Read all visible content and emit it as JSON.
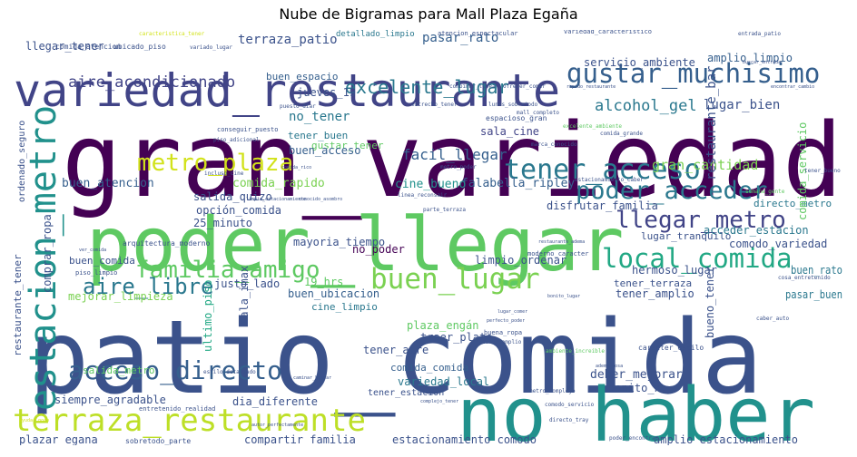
{
  "chart_data": {
    "type": "wordcloud",
    "title": "Nube de Bigramas para Mall Plaza Egaña",
    "colormap": "viridis",
    "background": "#ffffff",
    "words": [
      {
        "text": "gran_variedad",
        "weight": 1.0,
        "color": "#440154"
      },
      {
        "text": "patio_comida",
        "weight": 0.98,
        "color": "#3b528b"
      },
      {
        "text": "poder_llegar",
        "weight": 0.83,
        "color": "#5ec962"
      },
      {
        "text": "no_haber",
        "weight": 0.8,
        "color": "#21918c"
      },
      {
        "text": "variedad_restaurante",
        "weight": 0.6,
        "color": "#414487"
      },
      {
        "text": "estacion_metro",
        "weight": 0.44,
        "color": "#21918c"
      },
      {
        "text": "terraza_restaurante",
        "weight": 0.34,
        "color": "#bddf26"
      },
      {
        "text": "buen_lugar",
        "weight": 0.33,
        "color": "#7ad151"
      },
      {
        "text": "gustar_muchisimo",
        "weight": 0.32,
        "color": "#355f8d"
      },
      {
        "text": "local_comida",
        "weight": 0.32,
        "color": "#22a884"
      },
      {
        "text": "tener_acceso",
        "weight": 0.3,
        "color": "#2a788e"
      },
      {
        "text": "acceso_directo",
        "weight": 0.29,
        "color": "#355f8d"
      },
      {
        "text": "poder_acceder",
        "weight": 0.28,
        "color": "#2a788e"
      },
      {
        "text": "familia_amigo",
        "weight": 0.27,
        "color": "#5ec962"
      },
      {
        "text": "llegar_metro",
        "weight": 0.26,
        "color": "#414487"
      },
      {
        "text": "metro_plaza",
        "weight": 0.25,
        "color": "#d2e21b"
      },
      {
        "text": "aire_libre",
        "weight": 0.24,
        "color": "#2a788e"
      },
      {
        "text": "excelente_lugar",
        "weight": 0.19,
        "color": "#2a788e"
      },
      {
        "text": "aire_acondicionado",
        "weight": 0.16,
        "color": "#414487"
      },
      {
        "text": "alcohol_gel",
        "weight": 0.15,
        "color": "#2a788e"
      },
      {
        "text": "facil_llegar",
        "weight": 0.14,
        "color": "#355f8d"
      },
      {
        "text": "terraza_patio",
        "weight": 0.13,
        "color": "#3b528b"
      },
      {
        "text": "gran_cantidad",
        "weight": 0.12,
        "color": "#7ad151"
      },
      {
        "text": "restaurante_bar",
        "weight": 0.11,
        "color": "#3b528b"
      },
      {
        "text": "lugar_bien",
        "weight": 0.11,
        "color": "#3b528b"
      },
      {
        "text": "pasar_rato",
        "weight": 0.11,
        "color": "#355f8d"
      },
      {
        "text": "no_tener",
        "weight": 0.11,
        "color": "#2a788e"
      },
      {
        "text": "buen_atencion",
        "weight": 0.1,
        "color": "#355f8d"
      },
      {
        "text": "comida_rapido",
        "weight": 0.1,
        "color": "#7ad151"
      },
      {
        "text": "falabella_ripley",
        "weight": 0.1,
        "color": "#355f8d"
      },
      {
        "text": "cine_bueno",
        "weight": 0.1,
        "color": "#21918c"
      },
      {
        "text": "gustar_tener",
        "weight": 0.09,
        "color": "#5ec962"
      },
      {
        "text": "comprar_ropa",
        "weight": 0.09,
        "color": "#3b528b"
      },
      {
        "text": "disfrutar_familia",
        "weight": 0.09,
        "color": "#3b528b"
      },
      {
        "text": "directo_metro",
        "weight": 0.09,
        "color": "#2a788e"
      },
      {
        "text": "acceder_estacion",
        "weight": 0.09,
        "color": "#2a788e"
      },
      {
        "text": "amplio_limpio",
        "weight": 0.09,
        "color": "#355f8d"
      },
      {
        "text": "servicio_ambiente",
        "weight": 0.09,
        "color": "#3b528b"
      },
      {
        "text": "jueves_19",
        "weight": 0.09,
        "color": "#3b528b"
      },
      {
        "text": "buen_espacio",
        "weight": 0.09,
        "color": "#355f8d"
      },
      {
        "text": "sala_cine",
        "weight": 0.09,
        "color": "#414487"
      },
      {
        "text": "tener_buen",
        "weight": 0.08,
        "color": "#2a788e"
      },
      {
        "text": "buen_acceso",
        "weight": 0.08,
        "color": "#355f8d"
      },
      {
        "text": "salida_quizo",
        "weight": 0.08,
        "color": "#3b528b"
      },
      {
        "text": "opción_comida",
        "weight": 0.08,
        "color": "#3b528b"
      },
      {
        "text": "25_minuto",
        "weight": 0.08,
        "color": "#3b528b"
      },
      {
        "text": "mayoria_tiempo",
        "weight": 0.08,
        "color": "#3b528b"
      },
      {
        "text": "no_poder",
        "weight": 0.08,
        "color": "#440154"
      },
      {
        "text": "limpio_ordenar",
        "weight": 0.08,
        "color": "#3b528b"
      },
      {
        "text": "lugar_tranquilo",
        "weight": 0.08,
        "color": "#3b528b"
      },
      {
        "text": "comodo_variedad",
        "weight": 0.08,
        "color": "#3b528b"
      },
      {
        "text": "buen_rato",
        "weight": 0.08,
        "color": "#2a788e"
      },
      {
        "text": "hermoso_lugar",
        "weight": 0.08,
        "color": "#3b528b"
      },
      {
        "text": "tener_terraza",
        "weight": 0.08,
        "color": "#3b528b"
      },
      {
        "text": "tener_amplio",
        "weight": 0.08,
        "color": "#3b528b"
      },
      {
        "text": "bueno_tener",
        "weight": 0.08,
        "color": "#3b528b"
      },
      {
        "text": "buen_comida",
        "weight": 0.08,
        "color": "#3b528b"
      },
      {
        "text": "justo_lado",
        "weight": 0.08,
        "color": "#3b528b"
      },
      {
        "text": "mejorar_limpieza",
        "weight": 0.08,
        "color": "#7ad151"
      },
      {
        "text": "buen_ubicacion",
        "weight": 0.08,
        "color": "#355f8d"
      },
      {
        "text": "19_hrs",
        "weight": 0.08,
        "color": "#5ec962"
      },
      {
        "text": "cine_limpio",
        "weight": 0.08,
        "color": "#2a788e"
      },
      {
        "text": "sala_imax",
        "weight": 0.08,
        "color": "#3b528b"
      },
      {
        "text": "ultimo_piso",
        "weight": 0.08,
        "color": "#22a884"
      },
      {
        "text": "plaza_engán",
        "weight": 0.08,
        "color": "#5ec962"
      },
      {
        "text": "traer_plato",
        "weight": 0.08,
        "color": "#3b528b"
      },
      {
        "text": "tener_aire",
        "weight": 0.08,
        "color": "#3b528b"
      },
      {
        "text": "comida_comida",
        "weight": 0.08,
        "color": "#355f8d"
      },
      {
        "text": "restaurante_tener",
        "weight": 0.08,
        "color": "#3b528b"
      },
      {
        "text": "salida_metro",
        "weight": 0.08,
        "color": "#5ec962"
      },
      {
        "text": "variedad_local",
        "weight": 0.08,
        "color": "#2a788e"
      },
      {
        "text": "deber_mejorar",
        "weight": 0.08,
        "color": "#3b528b"
      },
      {
        "text": "bonito_no",
        "weight": 0.08,
        "color": "#3b528b"
      },
      {
        "text": "siempre_agradable",
        "weight": 0.08,
        "color": "#3b528b"
      },
      {
        "text": "tener_estacion",
        "weight": 0.07,
        "color": "#3b528b"
      },
      {
        "text": "dia_diferente",
        "weight": 0.08,
        "color": "#3b528b"
      },
      {
        "text": "plazar_egana",
        "weight": 0.08,
        "color": "#3b528b"
      },
      {
        "text": "compartir_familia",
        "weight": 0.08,
        "color": "#3b528b"
      },
      {
        "text": "estacionamiento_comodo",
        "weight": 0.08,
        "color": "#3b528b"
      },
      {
        "text": "amplio_estacionamiento",
        "weight": 0.08,
        "color": "#3b528b"
      },
      {
        "text": "pasar_buen",
        "weight": 0.08,
        "color": "#2a788e"
      },
      {
        "text": "llegar_tener",
        "weight": 0.08,
        "color": "#3b528b"
      },
      {
        "text": "ordenado_seguro",
        "weight": 0.07,
        "color": "#3b528b"
      },
      {
        "text": "comida_servicio",
        "weight": 0.07,
        "color": "#5ec962"
      },
      {
        "text": "detallado_limpio",
        "weight": 0.06,
        "color": "#2a788e"
      },
      {
        "text": "variedad_caracteristico",
        "weight": 0.05,
        "color": "#3b528b"
      },
      {
        "text": "atencion_espectacular",
        "weight": 0.05,
        "color": "#3b528b"
      },
      {
        "text": "caracteristica_tener",
        "weight": 0.04,
        "color": "#d2e21b"
      },
      {
        "text": "entrada_patio",
        "weight": 0.04,
        "color": "#3b528b"
      },
      {
        "text": "comida_atencion",
        "weight": 0.05,
        "color": "#3b528b"
      },
      {
        "text": "ubicado_piso",
        "weight": 0.05,
        "color": "#3b528b"
      },
      {
        "text": "variado_lugar",
        "weight": 0.04,
        "color": "#3b528b"
      },
      {
        "text": "conseguir_puesto",
        "weight": 0.05,
        "color": "#3b528b"
      },
      {
        "text": "piso_adicional",
        "weight": 0.04,
        "color": "#3b528b"
      },
      {
        "text": "mall_completo",
        "weight": 0.04,
        "color": "#3b528b"
      },
      {
        "text": "combinar_linea",
        "weight": 0.04,
        "color": "#3b528b"
      },
      {
        "text": "ofrecer_comer",
        "weight": 0.04,
        "color": "#3b528b"
      },
      {
        "text": "buscar_entrada",
        "weight": 0.04,
        "color": "#3b528b"
      },
      {
        "text": "rapido_restaurante",
        "weight": 0.04,
        "color": "#3b528b"
      },
      {
        "text": "encontrar_cambio",
        "weight": 0.04,
        "color": "#3b528b"
      },
      {
        "text": "puesto_diar",
        "weight": 0.04,
        "color": "#3b528b"
      },
      {
        "text": "lunes_sobretodo",
        "weight": 0.04,
        "color": "#3b528b"
      },
      {
        "text": "espacioso_gran",
        "weight": 0.05,
        "color": "#3b528b"
      },
      {
        "text": "comida_rico",
        "weight": 0.04,
        "color": "#3b528b"
      },
      {
        "text": "estrecho_tener",
        "weight": 0.04,
        "color": "#3b528b"
      },
      {
        "text": "marca_conocido",
        "weight": 0.04,
        "color": "#3b528b"
      },
      {
        "text": "excelente_ambiente",
        "weight": 0.04,
        "color": "#5ec962"
      },
      {
        "text": "comida_grande",
        "weight": 0.04,
        "color": "#3b528b"
      },
      {
        "text": "semana_gente",
        "weight": 0.04,
        "color": "#5ec962"
      },
      {
        "text": "tener_bueno",
        "weight": 0.04,
        "color": "#3b528b"
      },
      {
        "text": "estacionamiento_caber",
        "weight": 0.04,
        "color": "#3b528b"
      },
      {
        "text": "linea_reconsair",
        "weight": 0.04,
        "color": "#3b528b"
      },
      {
        "text": "parte_terraza",
        "weight": 0.04,
        "color": "#3b528b"
      },
      {
        "text": "conocido_asombro",
        "weight": 0.04,
        "color": "#3b528b"
      },
      {
        "text": "metro_poder",
        "weight": 0.04,
        "color": "#3b528b"
      },
      {
        "text": "limpio_estacionamiento",
        "weight": 0.04,
        "color": "#3b528b"
      },
      {
        "text": "incluso_cine",
        "weight": 0.04,
        "color": "#3b528b"
      },
      {
        "text": "moderno_caracter",
        "weight": 0.04,
        "color": "#3b528b"
      },
      {
        "text": "restaurante_adema",
        "weight": 0.04,
        "color": "#3b528b"
      },
      {
        "text": "arquitectura_moderno",
        "weight": 0.05,
        "color": "#3b528b"
      },
      {
        "text": "ver_comida",
        "weight": 0.04,
        "color": "#3b528b"
      },
      {
        "text": "piso_limpio",
        "weight": 0.04,
        "color": "#3b528b"
      },
      {
        "text": "bonito_lugar",
        "weight": 0.04,
        "color": "#3b528b"
      },
      {
        "text": "caracter_estilo",
        "weight": 0.05,
        "color": "#3b528b"
      },
      {
        "text": "ambiente_increible",
        "weight": 0.04,
        "color": "#5ec962"
      },
      {
        "text": "estilo_detallado",
        "weight": 0.04,
        "color": "#3b528b"
      },
      {
        "text": "caminar_buscar",
        "weight": 0.04,
        "color": "#3b528b"
      },
      {
        "text": "adema_cosa",
        "weight": 0.04,
        "color": "#3b528b"
      },
      {
        "text": "complejo_tener",
        "weight": 0.04,
        "color": "#3b528b"
      },
      {
        "text": "metro_complejo",
        "weight": 0.04,
        "color": "#3b528b"
      },
      {
        "text": "comodo_servicio",
        "weight": 0.04,
        "color": "#3b528b"
      },
      {
        "text": "entretenido_realidad",
        "weight": 0.04,
        "color": "#3b528b"
      },
      {
        "text": "ayudar_poco",
        "weight": 0.04,
        "color": "#d2e21b"
      },
      {
        "text": "sobretodo_parte",
        "weight": 0.04,
        "color": "#3b528b"
      },
      {
        "text": "autor_perfectamente",
        "weight": 0.04,
        "color": "#3b528b"
      },
      {
        "text": "directo_tray",
        "weight": 0.04,
        "color": "#3b528b"
      },
      {
        "text": "poder_encontrar",
        "weight": 0.04,
        "color": "#3b528b"
      },
      {
        "text": "cosa_entretenido",
        "weight": 0.04,
        "color": "#3b528b"
      },
      {
        "text": "caber_auto",
        "weight": 0.04,
        "color": "#3b528b"
      },
      {
        "text": "lugar_comer",
        "weight": 0.04,
        "color": "#3b528b"
      },
      {
        "text": "perfecto_poder",
        "weight": 0.04,
        "color": "#3b528b"
      },
      {
        "text": "buena_ropa",
        "weight": 0.04,
        "color": "#3b528b"
      },
      {
        "text": "comer_amplio",
        "weight": 0.04,
        "color": "#3b528b"
      }
    ]
  }
}
